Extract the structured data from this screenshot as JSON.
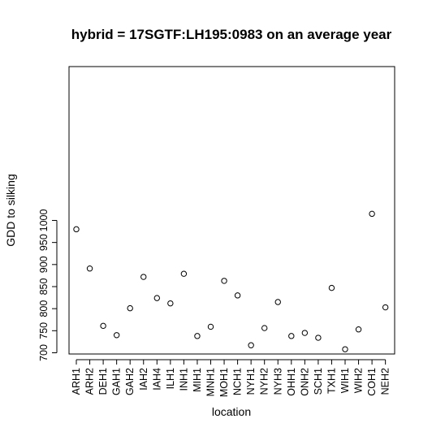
{
  "chart_data": {
    "type": "scatter",
    "title": "hybrid = 17SGTF:LH195:0983 on an average year",
    "xlabel": "location",
    "ylabel": "GDD to silking",
    "categories": [
      "ARH1",
      "ARH2",
      "DEH1",
      "GAH1",
      "GAH2",
      "IAH2",
      "IAH4",
      "ILH1",
      "INH1",
      "MIH1",
      "MNH1",
      "MOH1",
      "NCH1",
      "NYH1",
      "NYH2",
      "NYH3",
      "OHH1",
      "ONH2",
      "SCH1",
      "TXH1",
      "WIH1",
      "WIH2",
      "COH1",
      "NEH2"
    ],
    "values": [
      980,
      891,
      761,
      740,
      801,
      872,
      824,
      812,
      879,
      738,
      759,
      863,
      830,
      717,
      756,
      815,
      738,
      745,
      734,
      847,
      708,
      753,
      1015,
      803
    ],
    "yticks": [
      700,
      750,
      800,
      850,
      900,
      950,
      1000
    ],
    "ylim": [
      700,
      1015
    ],
    "grid": false,
    "marker": "open-circle"
  }
}
